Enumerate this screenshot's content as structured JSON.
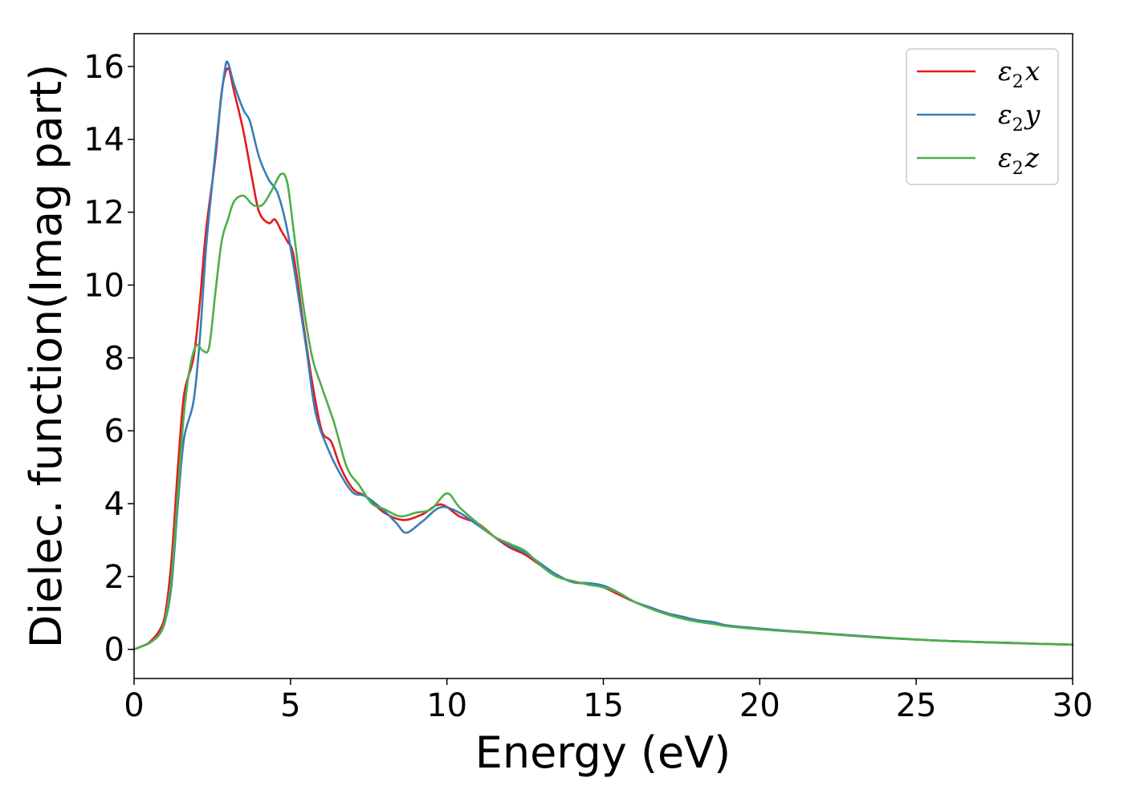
{
  "chart_data": {
    "type": "line",
    "title": "",
    "xlabel": "Energy (eV)",
    "ylabel": "Dielec. function(Imag part)",
    "xlim": [
      0,
      30
    ],
    "ylim": [
      -0.8,
      16.9
    ],
    "xticks": [
      "0",
      "5",
      "10",
      "15",
      "20",
      "25",
      "30"
    ],
    "yticks": [
      "0",
      "2",
      "4",
      "6",
      "8",
      "10",
      "12",
      "14",
      "16"
    ],
    "grid": false,
    "legend_position": "top-right",
    "series": [
      {
        "name": "ε2x",
        "legend_symbol": "ε",
        "legend_sub": "2",
        "legend_var": "x",
        "color": "#e41a1c",
        "points": [
          [
            0,
            0
          ],
          [
            0.3,
            0.1
          ],
          [
            0.5,
            0.2
          ],
          [
            0.8,
            0.5
          ],
          [
            1.0,
            1.0
          ],
          [
            1.2,
            2.5
          ],
          [
            1.4,
            5.0
          ],
          [
            1.6,
            7.0
          ],
          [
            1.9,
            8.0
          ],
          [
            2.1,
            9.5
          ],
          [
            2.3,
            11.5
          ],
          [
            2.6,
            13.5
          ],
          [
            2.8,
            15.3
          ],
          [
            3.0,
            15.95
          ],
          [
            3.2,
            15.3
          ],
          [
            3.5,
            14.2
          ],
          [
            3.8,
            12.8
          ],
          [
            4.0,
            12.0
          ],
          [
            4.3,
            11.7
          ],
          [
            4.5,
            11.8
          ],
          [
            4.7,
            11.5
          ],
          [
            4.9,
            11.2
          ],
          [
            5.1,
            10.8
          ],
          [
            5.4,
            9.0
          ],
          [
            5.7,
            7.3
          ],
          [
            6.0,
            6.0
          ],
          [
            6.3,
            5.7
          ],
          [
            6.6,
            5.0
          ],
          [
            7.0,
            4.4
          ],
          [
            7.4,
            4.2
          ],
          [
            8.0,
            3.75
          ],
          [
            8.6,
            3.55
          ],
          [
            9.2,
            3.7
          ],
          [
            9.8,
            3.98
          ],
          [
            10.4,
            3.65
          ],
          [
            11.0,
            3.45
          ],
          [
            11.5,
            3.1
          ],
          [
            12.0,
            2.8
          ],
          [
            12.5,
            2.6
          ],
          [
            13.0,
            2.3
          ],
          [
            13.5,
            2.05
          ],
          [
            14.0,
            1.85
          ],
          [
            14.5,
            1.8
          ],
          [
            15.0,
            1.7
          ],
          [
            15.5,
            1.5
          ],
          [
            16.0,
            1.3
          ],
          [
            16.5,
            1.15
          ],
          [
            17.0,
            1.0
          ],
          [
            17.5,
            0.9
          ],
          [
            18.0,
            0.8
          ],
          [
            18.5,
            0.72
          ],
          [
            19.0,
            0.65
          ],
          [
            20.0,
            0.57
          ],
          [
            21.0,
            0.5
          ],
          [
            22.0,
            0.44
          ],
          [
            23.0,
            0.38
          ],
          [
            24.0,
            0.32
          ],
          [
            25.0,
            0.27
          ],
          [
            26.0,
            0.23
          ],
          [
            27.0,
            0.2
          ],
          [
            28.0,
            0.18
          ],
          [
            29.0,
            0.15
          ],
          [
            30.0,
            0.13
          ]
        ]
      },
      {
        "name": "ε2y",
        "legend_symbol": "ε",
        "legend_sub": "2",
        "legend_var": "y",
        "color": "#377eb8",
        "points": [
          [
            0,
            0
          ],
          [
            0.3,
            0.1
          ],
          [
            0.5,
            0.18
          ],
          [
            0.8,
            0.4
          ],
          [
            1.0,
            0.8
          ],
          [
            1.2,
            1.8
          ],
          [
            1.4,
            4.0
          ],
          [
            1.6,
            5.8
          ],
          [
            1.9,
            6.8
          ],
          [
            2.1,
            8.5
          ],
          [
            2.3,
            11.0
          ],
          [
            2.5,
            12.8
          ],
          [
            2.7,
            14.5
          ],
          [
            2.9,
            15.9
          ],
          [
            3.0,
            16.1
          ],
          [
            3.2,
            15.5
          ],
          [
            3.5,
            14.8
          ],
          [
            3.7,
            14.5
          ],
          [
            4.0,
            13.5
          ],
          [
            4.3,
            12.9
          ],
          [
            4.6,
            12.5
          ],
          [
            4.9,
            11.5
          ],
          [
            5.2,
            10.0
          ],
          [
            5.5,
            8.3
          ],
          [
            5.8,
            6.5
          ],
          [
            6.2,
            5.5
          ],
          [
            6.6,
            4.8
          ],
          [
            7.0,
            4.3
          ],
          [
            7.4,
            4.2
          ],
          [
            8.0,
            3.8
          ],
          [
            8.4,
            3.45
          ],
          [
            8.7,
            3.2
          ],
          [
            9.2,
            3.5
          ],
          [
            9.8,
            3.9
          ],
          [
            10.4,
            3.75
          ],
          [
            11.0,
            3.4
          ],
          [
            11.5,
            3.1
          ],
          [
            12.0,
            2.85
          ],
          [
            12.5,
            2.65
          ],
          [
            13.0,
            2.35
          ],
          [
            13.5,
            2.05
          ],
          [
            14.0,
            1.85
          ],
          [
            14.5,
            1.82
          ],
          [
            15.0,
            1.75
          ],
          [
            15.5,
            1.55
          ],
          [
            16.0,
            1.3
          ],
          [
            16.5,
            1.15
          ],
          [
            17.0,
            1.0
          ],
          [
            17.5,
            0.9
          ],
          [
            18.0,
            0.8
          ],
          [
            18.5,
            0.75
          ],
          [
            19.0,
            0.65
          ],
          [
            20.0,
            0.57
          ],
          [
            21.0,
            0.5
          ],
          [
            22.0,
            0.44
          ],
          [
            23.0,
            0.38
          ],
          [
            24.0,
            0.32
          ],
          [
            25.0,
            0.27
          ],
          [
            26.0,
            0.23
          ],
          [
            27.0,
            0.2
          ],
          [
            28.0,
            0.18
          ],
          [
            29.0,
            0.15
          ],
          [
            30.0,
            0.13
          ]
        ]
      },
      {
        "name": "ε2z",
        "legend_symbol": "ε",
        "legend_sub": "2",
        "legend_var": "z",
        "color": "#4daf4a",
        "points": [
          [
            0,
            0
          ],
          [
            0.3,
            0.1
          ],
          [
            0.5,
            0.18
          ],
          [
            0.8,
            0.4
          ],
          [
            1.0,
            0.85
          ],
          [
            1.2,
            2.0
          ],
          [
            1.4,
            4.3
          ],
          [
            1.6,
            6.5
          ],
          [
            1.8,
            7.8
          ],
          [
            2.0,
            8.35
          ],
          [
            2.2,
            8.2
          ],
          [
            2.4,
            8.3
          ],
          [
            2.6,
            9.8
          ],
          [
            2.8,
            11.2
          ],
          [
            3.0,
            11.8
          ],
          [
            3.2,
            12.3
          ],
          [
            3.5,
            12.45
          ],
          [
            3.8,
            12.2
          ],
          [
            4.1,
            12.2
          ],
          [
            4.4,
            12.6
          ],
          [
            4.7,
            13.05
          ],
          [
            4.9,
            12.8
          ],
          [
            5.1,
            11.5
          ],
          [
            5.4,
            9.5
          ],
          [
            5.7,
            8.0
          ],
          [
            6.0,
            7.2
          ],
          [
            6.4,
            6.2
          ],
          [
            6.8,
            5.0
          ],
          [
            7.2,
            4.5
          ],
          [
            7.6,
            4.0
          ],
          [
            8.0,
            3.85
          ],
          [
            8.5,
            3.65
          ],
          [
            9.0,
            3.75
          ],
          [
            9.5,
            3.85
          ],
          [
            10.0,
            4.28
          ],
          [
            10.4,
            3.9
          ],
          [
            11.0,
            3.45
          ],
          [
            11.5,
            3.1
          ],
          [
            12.0,
            2.9
          ],
          [
            12.5,
            2.7
          ],
          [
            13.0,
            2.3
          ],
          [
            13.5,
            2.0
          ],
          [
            14.0,
            1.88
          ],
          [
            14.5,
            1.78
          ],
          [
            15.0,
            1.7
          ],
          [
            15.5,
            1.55
          ],
          [
            16.0,
            1.3
          ],
          [
            16.5,
            1.12
          ],
          [
            17.0,
            0.97
          ],
          [
            17.5,
            0.85
          ],
          [
            18.0,
            0.76
          ],
          [
            18.5,
            0.7
          ],
          [
            19.0,
            0.63
          ],
          [
            20.0,
            0.55
          ],
          [
            21.0,
            0.49
          ],
          [
            22.0,
            0.43
          ],
          [
            23.0,
            0.37
          ],
          [
            24.0,
            0.31
          ],
          [
            25.0,
            0.27
          ],
          [
            26.0,
            0.23
          ],
          [
            27.0,
            0.2
          ],
          [
            28.0,
            0.17
          ],
          [
            29.0,
            0.15
          ],
          [
            30.0,
            0.13
          ]
        ]
      }
    ]
  }
}
